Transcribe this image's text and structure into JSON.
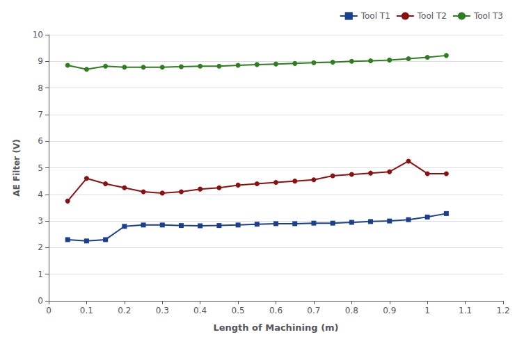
{
  "chart_data": {
    "type": "line",
    "x": [
      0.05,
      0.1,
      0.15,
      0.2,
      0.25,
      0.3,
      0.35,
      0.4,
      0.45,
      0.5,
      0.55,
      0.6,
      0.65,
      0.7,
      0.75,
      0.8,
      0.85,
      0.9,
      0.95,
      1.0,
      1.05
    ],
    "series": [
      {
        "name": "Tool T1",
        "color": "#1a3f8f",
        "marker": "square",
        "values": [
          2.3,
          2.25,
          2.3,
          2.8,
          2.85,
          2.85,
          2.83,
          2.82,
          2.83,
          2.85,
          2.88,
          2.9,
          2.9,
          2.92,
          2.92,
          2.95,
          2.98,
          3.0,
          3.05,
          3.15,
          3.28
        ]
      },
      {
        "name": "Tool T2",
        "color": "#8b1111",
        "marker": "circle",
        "values": [
          3.75,
          4.6,
          4.4,
          4.25,
          4.1,
          4.05,
          4.1,
          4.2,
          4.25,
          4.35,
          4.4,
          4.45,
          4.5,
          4.55,
          4.7,
          4.75,
          4.8,
          4.85,
          5.25,
          4.78,
          4.78
        ]
      },
      {
        "name": "Tool T3",
        "color": "#2e7d1e",
        "marker": "circle",
        "values": [
          8.85,
          8.7,
          8.82,
          8.78,
          8.78,
          8.78,
          8.8,
          8.82,
          8.82,
          8.85,
          8.88,
          8.9,
          8.92,
          8.95,
          8.97,
          9.0,
          9.02,
          9.05,
          9.1,
          9.15,
          9.22
        ]
      }
    ],
    "x_label": "Length of Machining (m)",
    "y_label": "AE Filter (V)",
    "xlim": [
      0,
      1.2
    ],
    "ylim": [
      0,
      10
    ],
    "xticks": [
      0,
      0.1,
      0.2,
      0.3,
      0.4,
      0.5,
      0.6,
      0.7,
      0.8,
      0.9,
      1,
      1.1,
      1.2
    ],
    "yticks": [
      0,
      1,
      2,
      3,
      4,
      5,
      6,
      7,
      8,
      9,
      10
    ],
    "grid": true,
    "legend": "upper right"
  }
}
